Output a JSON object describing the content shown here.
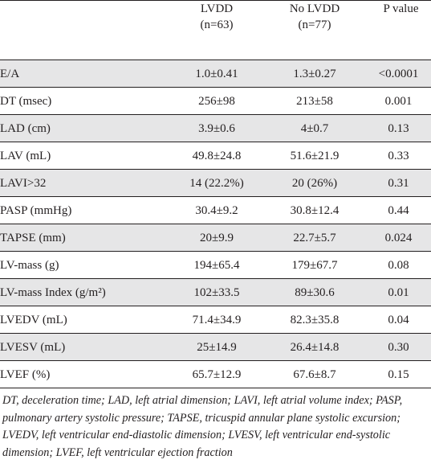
{
  "table": {
    "header": {
      "col0": "",
      "group1_line1": "LVDD",
      "group1_line2": "(n=63)",
      "group2_line1": "No LVDD",
      "group2_line2": "(n=77)",
      "pvalue": "P  value"
    },
    "rows": [
      {
        "label": "E/A",
        "lvdd": "1.0±0.41",
        "no_lvdd": "1.3±0.27",
        "p": "<0.0001"
      },
      {
        "label": "DT (msec)",
        "lvdd": "256±98",
        "no_lvdd": "213±58",
        "p": "0.001"
      },
      {
        "label": "LAD (cm)",
        "lvdd": "3.9±0.6",
        "no_lvdd": "4±0.7",
        "p": "0.13"
      },
      {
        "label": "LAV (mL)",
        "lvdd": "49.8±24.8",
        "no_lvdd": "51.6±21.9",
        "p": "0.33"
      },
      {
        "label": "LAVI>32",
        "lvdd": "14 (22.2%)",
        "no_lvdd": "20 (26%)",
        "p": "0.31"
      },
      {
        "label": "PASP (mmHg)",
        "lvdd": "30.4±9.2",
        "no_lvdd": "30.8±12.4",
        "p": "0.44"
      },
      {
        "label": "TAPSE (mm)",
        "lvdd": "20±9.9",
        "no_lvdd": "22.7±5.7",
        "p": "0.024"
      },
      {
        "label": "LV-mass (g)",
        "lvdd": "194±65.4",
        "no_lvdd": "179±67.7",
        "p": "0.08"
      },
      {
        "label": "LV-mass Index (g/m²)",
        "lvdd": "102±33.5",
        "no_lvdd": "89±30.6",
        "p": "0.01"
      },
      {
        "label": "LVEDV (mL)",
        "lvdd": "71.4±34.9",
        "no_lvdd": "82.3±35.8",
        "p": "0.04"
      },
      {
        "label": "LVESV (mL)",
        "lvdd": "25±14.9",
        "no_lvdd": "26.4±14.8",
        "p": "0.30"
      },
      {
        "label": "LVEF (%)",
        "lvdd": "65.7±12.9",
        "no_lvdd": "67.6±8.7",
        "p": "0.15"
      }
    ]
  },
  "footnote": "DT, deceleration time; LAD, left atrial dimension; LAVI, left atrial volume index; PASP, pulmonary artery systolic pressure; TAPSE, tricuspid annular plane systolic excursion; LVEDV, left ventricular end-diastolic dimension; LVESV, left ventricular end-systolic dimension; LVEF, left ventricular ejection fraction",
  "colors": {
    "text": "#231f20",
    "row_shade": "#e6e6e7",
    "rule": "#231f20"
  }
}
